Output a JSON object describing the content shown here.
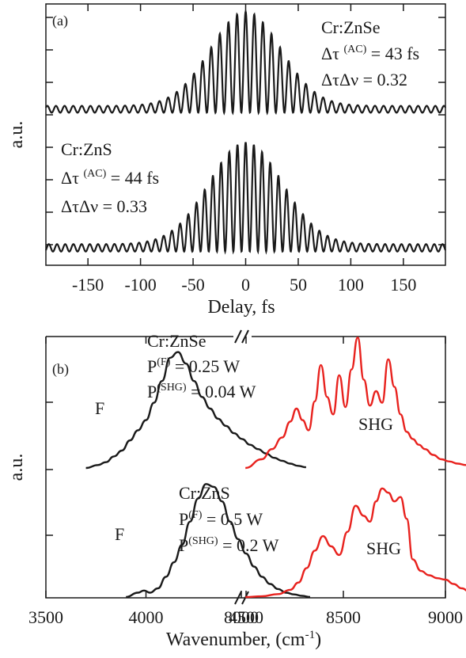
{
  "chart_data": [
    {
      "panel": "(a)",
      "type": "line",
      "xlabel": "Delay, fs",
      "ylabel": "a.u.",
      "xlim": [
        -190,
        190
      ],
      "x_ticks": [
        -150,
        -100,
        -50,
        0,
        50,
        100,
        150
      ],
      "x_tick_labels": [
        "-150",
        "-100",
        "-50",
        "0",
        "50",
        "100",
        "150"
      ],
      "series": [
        {
          "name": "Cr:ZnSe",
          "label_lines": [
            "Cr:ZnSe",
            "Δτ (AC) = 43 fs",
            "ΔτΔν = 0.32"
          ],
          "fringe_period_fs": 8.2,
          "envelope_width_fs": 52,
          "peak_au": 8,
          "baseline_au": 1
        },
        {
          "name": "Cr:ZnS",
          "label_lines": [
            "Cr:ZnS",
            "Δτ (AC) = 44 fs",
            "ΔτΔν = 0.33"
          ],
          "fringe_period_fs": 7.8,
          "envelope_width_fs": 54,
          "peak_au": 8,
          "baseline_au": 1
        }
      ]
    },
    {
      "panel": "(b)",
      "type": "line",
      "xlabel": "Wavenumber, (cm",
      "xlabel_sup": "-1",
      "xlabel_end": ")",
      "ylabel": "a.u.",
      "x_ticks": [
        3500,
        4000,
        4500,
        8000,
        8500,
        9000,
        9500
      ],
      "x_tick_labels": [
        "3500",
        "4000",
        "4500",
        "8000",
        "8500",
        "9000",
        "9500"
      ],
      "axis_break_between": [
        4800,
        8000
      ],
      "annotations": [
        {
          "group": "Cr:ZnSe",
          "lines": [
            {
              "text": "Cr:ZnSe"
            },
            {
              "text": "P",
              "sup": "(F)",
              "rest": " = 0.25 W"
            },
            {
              "text": "P",
              "sup": "(SHG)",
              "rest": " = 0.04 W"
            }
          ]
        },
        {
          "group": "Cr:ZnS",
          "lines": [
            {
              "text": "Cr:ZnS"
            },
            {
              "text": "P",
              "sup": "(F)",
              "rest": " = 0.5 W"
            },
            {
              "text": "P",
              "sup": "(SHG)",
              "rest": " = 0.2 W"
            }
          ]
        }
      ],
      "series": [
        {
          "name": "F",
          "crystal": "Cr:ZnSe",
          "color": "#1a1a1a",
          "x": [
            3700,
            3760,
            3800,
            3840,
            3880,
            3920,
            3960,
            4000,
            4040,
            4080,
            4120,
            4160,
            4200,
            4240,
            4280,
            4320,
            4360,
            4400,
            4440,
            4480,
            4520,
            4560,
            4600,
            4640,
            4680,
            4720,
            4760,
            4800
          ],
          "y": [
            0,
            0.2,
            0.4,
            0.8,
            1.2,
            1.9,
            2.6,
            3.3,
            4.5,
            6.0,
            7.6,
            8.0,
            7.2,
            6.0,
            4.9,
            4.1,
            3.4,
            2.9,
            2.4,
            2.0,
            1.6,
            1.3,
            1.0,
            0.7,
            0.5,
            0.3,
            0.15,
            0.05
          ]
        },
        {
          "name": "SHG",
          "crystal": "Cr:ZnSe",
          "color": "#e8221e",
          "x": [
            8020,
            8100,
            8150,
            8200,
            8240,
            8270,
            8300,
            8330,
            8360,
            8390,
            8420,
            8450,
            8480,
            8510,
            8540,
            8570,
            8600,
            8630,
            8660,
            8690,
            8720,
            8750,
            8780,
            8810,
            8840,
            8870,
            8900,
            8940,
            8980,
            9020,
            9060,
            9100,
            9150,
            9200,
            9250,
            9300,
            9350,
            9400
          ],
          "y": [
            0,
            0.6,
            1.3,
            2.1,
            3.2,
            4.1,
            3.3,
            2.6,
            4.6,
            7.1,
            4.9,
            3.7,
            6.4,
            4.2,
            6.8,
            9.0,
            6.1,
            4.3,
            5.3,
            4.5,
            7.5,
            5.6,
            3.7,
            2.5,
            2.0,
            1.6,
            1.3,
            0.9,
            0.6,
            0.45,
            0.3,
            0.2,
            0.12,
            0.08,
            0.05,
            0.03,
            0.02,
            0.0
          ]
        },
        {
          "name": "F",
          "crystal": "Cr:ZnS",
          "color": "#1a1a1a",
          "x": [
            3900,
            3960,
            3990,
            4020,
            4060,
            4100,
            4140,
            4180,
            4220,
            4260,
            4300,
            4340,
            4380,
            4420,
            4460,
            4500,
            4540,
            4580,
            4620,
            4660,
            4700,
            4740,
            4780,
            4820
          ],
          "y": [
            0,
            0.3,
            0.45,
            0.3,
            0.6,
            1.4,
            2.4,
            3.6,
            5.2,
            6.8,
            7.8,
            7.6,
            6.6,
            5.2,
            4.0,
            3.0,
            2.1,
            1.4,
            0.9,
            0.55,
            0.3,
            0.18,
            0.08,
            0.0
          ]
        },
        {
          "name": "SHG",
          "crystal": "Cr:ZnS",
          "color": "#e8221e",
          "x": [
            8020,
            8100,
            8180,
            8240,
            8280,
            8320,
            8360,
            8400,
            8440,
            8480,
            8520,
            8560,
            8600,
            8630,
            8660,
            8690,
            8720,
            8750,
            8780,
            8810,
            8840,
            8880,
            8920,
            8960,
            9000,
            9040,
            9080,
            9120,
            9160,
            9200,
            9250
          ],
          "y": [
            0,
            0.05,
            0.2,
            0.5,
            1.0,
            2.0,
            3.2,
            4.2,
            3.5,
            2.9,
            4.5,
            6.3,
            5.6,
            5.2,
            6.6,
            7.5,
            7.2,
            6.6,
            6.9,
            5.4,
            2.6,
            1.8,
            1.5,
            1.3,
            1.2,
            0.9,
            0.6,
            0.35,
            0.2,
            0.08,
            0.0
          ]
        }
      ]
    }
  ]
}
